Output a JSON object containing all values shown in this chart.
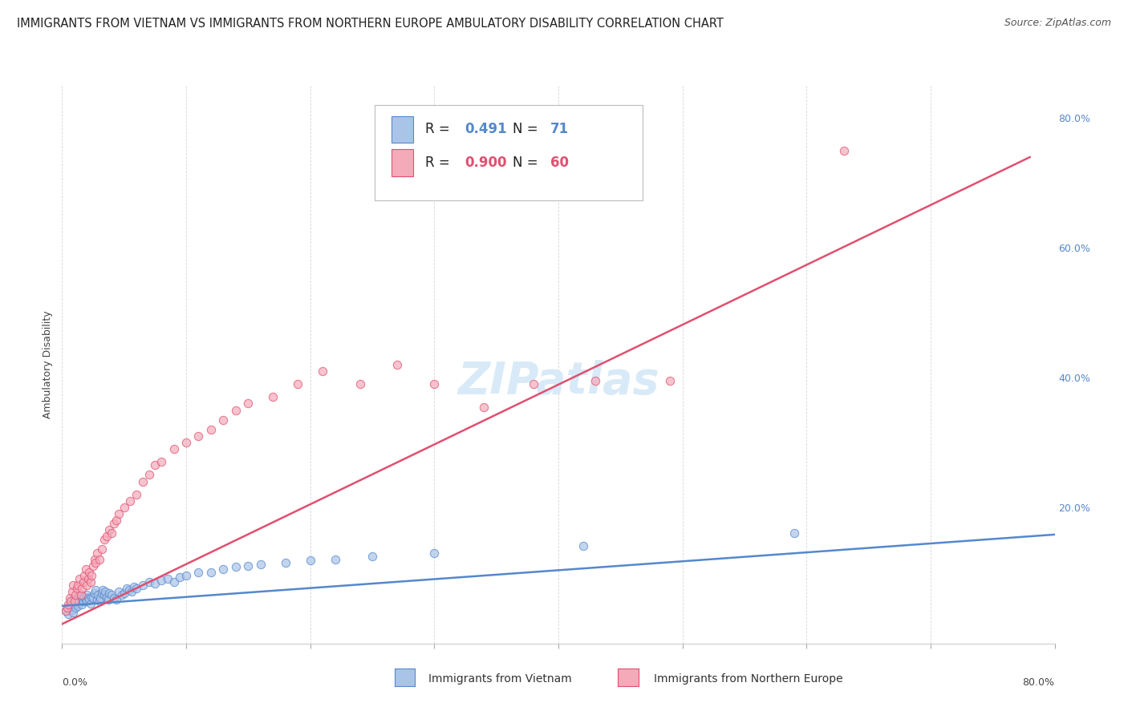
{
  "title": "IMMIGRANTS FROM VIETNAM VS IMMIGRANTS FROM NORTHERN EUROPE AMBULATORY DISABILITY CORRELATION CHART",
  "source": "Source: ZipAtlas.com",
  "ylabel": "Ambulatory Disability",
  "xmin": 0.0,
  "xmax": 0.8,
  "ymin": -0.01,
  "ymax": 0.85,
  "right_yticks": [
    0.0,
    0.2,
    0.4,
    0.6,
    0.8
  ],
  "right_yticklabels": [
    "",
    "20.0%",
    "40.0%",
    "60.0%",
    "80.0%"
  ],
  "watermark": "ZIPatlas",
  "legend_box": {
    "blue_r": "0.491",
    "blue_n": "71",
    "pink_r": "0.900",
    "pink_n": "60"
  },
  "blue_color": "#aac4e8",
  "pink_color": "#f5aaba",
  "blue_line_color": "#5588cc",
  "pink_line_color": "#e05070",
  "blue_scatter_x": [
    0.003,
    0.005,
    0.006,
    0.007,
    0.008,
    0.009,
    0.01,
    0.01,
    0.011,
    0.012,
    0.012,
    0.013,
    0.014,
    0.015,
    0.015,
    0.016,
    0.017,
    0.018,
    0.019,
    0.02,
    0.02,
    0.021,
    0.022,
    0.023,
    0.024,
    0.025,
    0.026,
    0.027,
    0.028,
    0.029,
    0.03,
    0.031,
    0.032,
    0.033,
    0.034,
    0.035,
    0.036,
    0.037,
    0.038,
    0.04,
    0.042,
    0.044,
    0.046,
    0.048,
    0.05,
    0.052,
    0.054,
    0.056,
    0.058,
    0.06,
    0.065,
    0.07,
    0.075,
    0.08,
    0.085,
    0.09,
    0.095,
    0.1,
    0.11,
    0.12,
    0.13,
    0.14,
    0.15,
    0.16,
    0.18,
    0.2,
    0.22,
    0.25,
    0.3,
    0.42,
    0.59
  ],
  "blue_scatter_y": [
    0.04,
    0.035,
    0.048,
    0.055,
    0.042,
    0.038,
    0.05,
    0.06,
    0.045,
    0.052,
    0.058,
    0.048,
    0.055,
    0.06,
    0.065,
    0.05,
    0.055,
    0.062,
    0.058,
    0.055,
    0.065,
    0.06,
    0.058,
    0.052,
    0.062,
    0.06,
    0.068,
    0.072,
    0.058,
    0.065,
    0.055,
    0.06,
    0.068,
    0.072,
    0.065,
    0.07,
    0.062,
    0.058,
    0.068,
    0.065,
    0.06,
    0.058,
    0.07,
    0.065,
    0.068,
    0.075,
    0.072,
    0.07,
    0.078,
    0.075,
    0.08,
    0.085,
    0.082,
    0.088,
    0.09,
    0.085,
    0.092,
    0.095,
    0.1,
    0.1,
    0.105,
    0.108,
    0.11,
    0.112,
    0.115,
    0.118,
    0.12,
    0.125,
    0.13,
    0.14,
    0.16
  ],
  "pink_scatter_x": [
    0.003,
    0.004,
    0.005,
    0.006,
    0.007,
    0.008,
    0.009,
    0.01,
    0.011,
    0.012,
    0.013,
    0.014,
    0.015,
    0.016,
    0.017,
    0.018,
    0.019,
    0.02,
    0.021,
    0.022,
    0.023,
    0.024,
    0.025,
    0.026,
    0.027,
    0.028,
    0.03,
    0.032,
    0.034,
    0.036,
    0.038,
    0.04,
    0.042,
    0.044,
    0.046,
    0.05,
    0.055,
    0.06,
    0.065,
    0.07,
    0.075,
    0.08,
    0.09,
    0.1,
    0.11,
    0.12,
    0.13,
    0.14,
    0.15,
    0.17,
    0.19,
    0.21,
    0.24,
    0.27,
    0.3,
    0.34,
    0.38,
    0.43,
    0.49,
    0.63
  ],
  "pink_scatter_y": [
    0.04,
    0.045,
    0.05,
    0.06,
    0.055,
    0.07,
    0.08,
    0.055,
    0.065,
    0.075,
    0.08,
    0.09,
    0.065,
    0.075,
    0.085,
    0.095,
    0.105,
    0.08,
    0.09,
    0.1,
    0.085,
    0.095,
    0.11,
    0.12,
    0.115,
    0.13,
    0.12,
    0.135,
    0.15,
    0.155,
    0.165,
    0.16,
    0.175,
    0.18,
    0.19,
    0.2,
    0.21,
    0.22,
    0.24,
    0.25,
    0.265,
    0.27,
    0.29,
    0.3,
    0.31,
    0.32,
    0.335,
    0.35,
    0.36,
    0.37,
    0.39,
    0.41,
    0.39,
    0.42,
    0.39,
    0.355,
    0.39,
    0.395,
    0.395,
    0.75
  ],
  "blue_trendline_x": [
    0.0,
    0.8
  ],
  "blue_trendline_y": [
    0.048,
    0.158
  ],
  "pink_trendline_x": [
    0.0,
    0.78
  ],
  "pink_trendline_y": [
    0.02,
    0.74
  ],
  "title_fontsize": 10.5,
  "source_fontsize": 9,
  "axis_label_fontsize": 9,
  "tick_fontsize": 9,
  "legend_fontsize": 12,
  "watermark_fontsize": 40,
  "watermark_color": "#d8eaf8",
  "background_color": "#ffffff"
}
